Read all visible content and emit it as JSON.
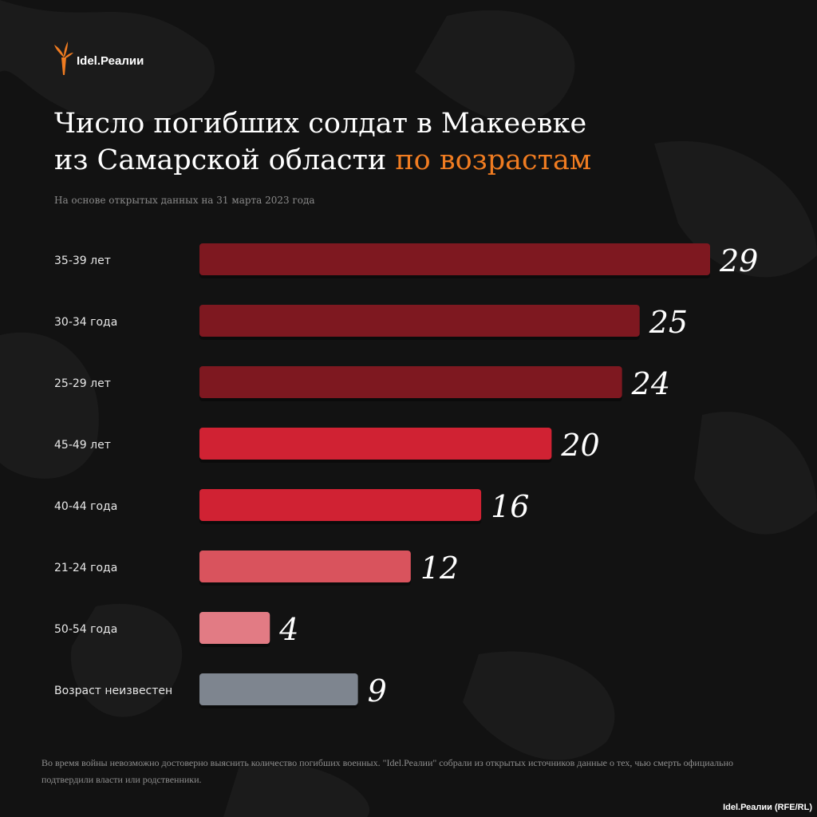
{
  "brand": {
    "logo_text": "Idel.Реалии",
    "accent": "#f07c21"
  },
  "title": {
    "line1": "Число погибших солдат в Макеевке",
    "line2_plain": "из Самарской области ",
    "line2_highlight": "по возрастам"
  },
  "subtitle": "На основе открытых данных на 31 марта 2023 года",
  "footer": "Во время войны невозможно достоверно выяснить количество погибших военных. \"Idel.Реалии\" собрали из открытых источников данные о тех, чью смерть официально подтвердили власти или родственники.",
  "credit": "Idel.Реалии (RFE/RL)",
  "chart_data": {
    "type": "bar",
    "orientation": "horizontal",
    "categories": [
      "35-39 лет",
      "30-34 года",
      "25-29 лет",
      "45-49 лет",
      "40-44 года",
      "21-24 года",
      "50-54 года",
      "Возраст неизвестен"
    ],
    "values": [
      29,
      25,
      24,
      20,
      16,
      12,
      4,
      9
    ],
    "colors": [
      "#7e1820",
      "#7e1820",
      "#7e1820",
      "#d02233",
      "#d02233",
      "#d9535d",
      "#e27b84",
      "#7e858f"
    ],
    "grid": false,
    "data_labels": true
  }
}
